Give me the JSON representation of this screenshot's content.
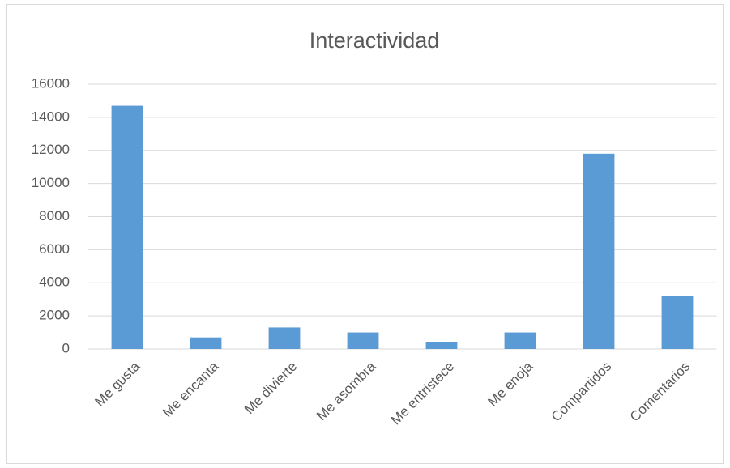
{
  "chart_data": {
    "type": "bar",
    "title": "Interactividad",
    "categories": [
      "Me gusta",
      "Me encanta",
      "Me divierte",
      "Me asombra",
      "Me entristece",
      "Me enoja",
      "Compartidos",
      "Comentarios"
    ],
    "values": [
      14700,
      700,
      1300,
      1000,
      400,
      1000,
      11800,
      3200
    ],
    "color": "#5b9bd5",
    "ylim": [
      0,
      16000
    ],
    "yticks": [
      0,
      2000,
      4000,
      6000,
      8000,
      10000,
      12000,
      14000,
      16000
    ],
    "grid": true
  }
}
